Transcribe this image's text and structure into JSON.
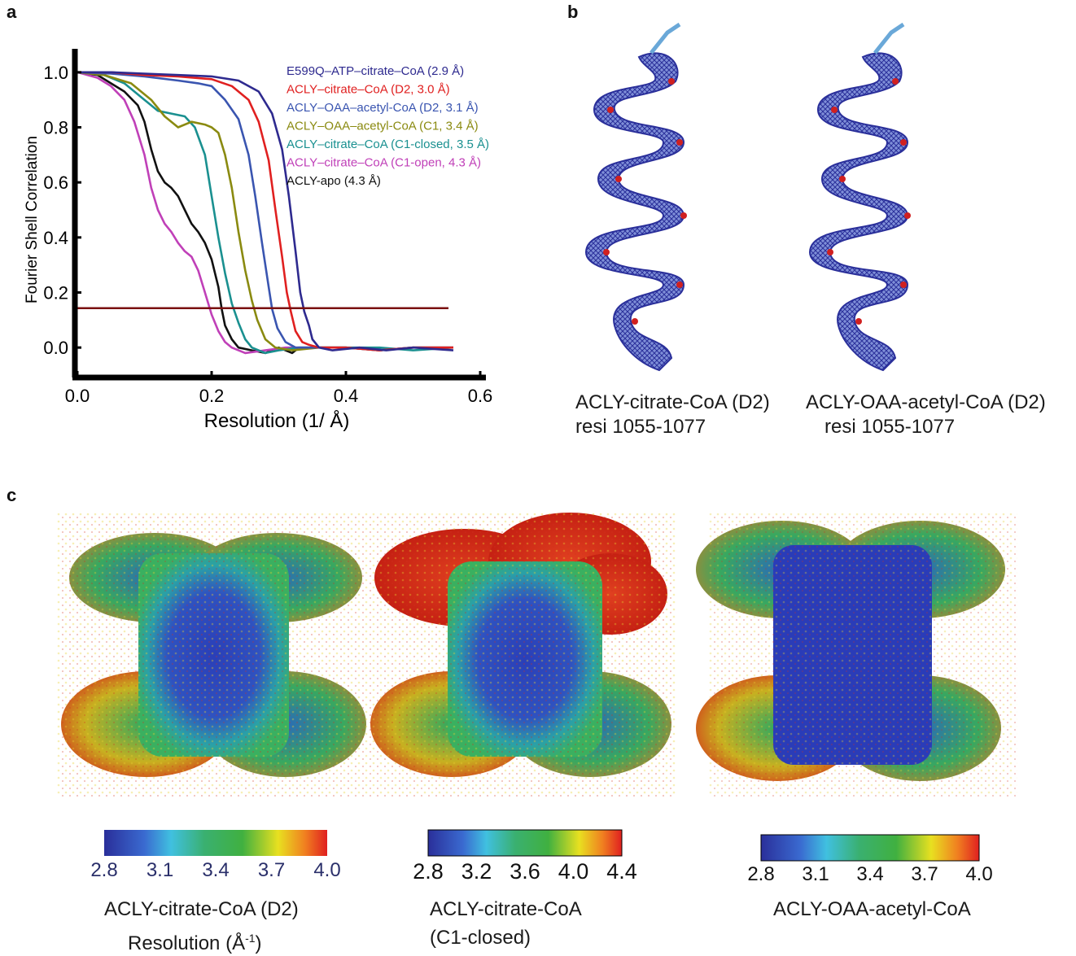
{
  "panels": {
    "a": "a",
    "b": "b",
    "c": "c"
  },
  "chart_data": {
    "type": "line",
    "title": "",
    "xlabel": "Resolution (1/ Å)",
    "ylabel": "Fourier Shell Correlation",
    "xlim": [
      0.0,
      0.6
    ],
    "ylim": [
      -0.1,
      1.1
    ],
    "xticks": [
      "0.0",
      "0.2",
      "0.4",
      "0.6"
    ],
    "yticks": [
      "0.0",
      "0.2",
      "0.4",
      "0.6",
      "0.8",
      "1.0"
    ],
    "threshold": 0.143,
    "threshold_color": "#7a1010",
    "grid": false,
    "legend_position": "top-right",
    "series": [
      {
        "name": "E599Q–ATP–citrate–CoA (2.9 Å)",
        "color": "#2e2a8f",
        "points": [
          [
            0,
            1
          ],
          [
            0.05,
            1
          ],
          [
            0.1,
            0.995
          ],
          [
            0.15,
            0.99
          ],
          [
            0.2,
            0.985
          ],
          [
            0.24,
            0.97
          ],
          [
            0.27,
            0.93
          ],
          [
            0.29,
            0.85
          ],
          [
            0.305,
            0.72
          ],
          [
            0.315,
            0.55
          ],
          [
            0.325,
            0.35
          ],
          [
            0.332,
            0.2
          ],
          [
            0.338,
            0.13
          ],
          [
            0.345,
            0.08
          ],
          [
            0.35,
            0.03
          ],
          [
            0.36,
            0.0
          ],
          [
            0.38,
            -0.01
          ],
          [
            0.42,
            0.0
          ],
          [
            0.46,
            -0.01
          ],
          [
            0.5,
            0.0
          ],
          [
            0.56,
            -0.01
          ]
        ]
      },
      {
        "name": "ACLY–citrate–CoA (D2, 3.0 Å)",
        "color": "#e02020",
        "points": [
          [
            0,
            1
          ],
          [
            0.05,
            1
          ],
          [
            0.1,
            0.99
          ],
          [
            0.15,
            0.985
          ],
          [
            0.2,
            0.975
          ],
          [
            0.23,
            0.95
          ],
          [
            0.255,
            0.9
          ],
          [
            0.27,
            0.82
          ],
          [
            0.285,
            0.68
          ],
          [
            0.295,
            0.5
          ],
          [
            0.305,
            0.33
          ],
          [
            0.312,
            0.2
          ],
          [
            0.318,
            0.13
          ],
          [
            0.325,
            0.06
          ],
          [
            0.335,
            0.02
          ],
          [
            0.345,
            0.01
          ],
          [
            0.36,
            0.0
          ],
          [
            0.4,
            0.0
          ],
          [
            0.45,
            -0.01
          ],
          [
            0.5,
            0.0
          ],
          [
            0.56,
            0.0
          ]
        ]
      },
      {
        "name": "ACLY–OAA–acetyl-CoA (D2, 3.1 Å)",
        "color": "#3a55b0",
        "points": [
          [
            0,
            1
          ],
          [
            0.05,
            0.995
          ],
          [
            0.1,
            0.985
          ],
          [
            0.15,
            0.97
          ],
          [
            0.18,
            0.96
          ],
          [
            0.2,
            0.95
          ],
          [
            0.22,
            0.9
          ],
          [
            0.24,
            0.83
          ],
          [
            0.255,
            0.7
          ],
          [
            0.265,
            0.55
          ],
          [
            0.275,
            0.38
          ],
          [
            0.285,
            0.22
          ],
          [
            0.29,
            0.14
          ],
          [
            0.298,
            0.07
          ],
          [
            0.31,
            0.02
          ],
          [
            0.325,
            0.0
          ],
          [
            0.35,
            0.0
          ],
          [
            0.4,
            0.0
          ],
          [
            0.45,
            -0.01
          ],
          [
            0.5,
            0.0
          ],
          [
            0.56,
            0.0
          ]
        ]
      },
      {
        "name": "ACLY–OAA–acetyl-CoA (C1, 3.4 Å)",
        "color": "#8a8a10",
        "points": [
          [
            0,
            1
          ],
          [
            0.04,
            0.99
          ],
          [
            0.08,
            0.96
          ],
          [
            0.11,
            0.9
          ],
          [
            0.13,
            0.84
          ],
          [
            0.15,
            0.8
          ],
          [
            0.17,
            0.82
          ],
          [
            0.19,
            0.81
          ],
          [
            0.2,
            0.8
          ],
          [
            0.21,
            0.78
          ],
          [
            0.22,
            0.7
          ],
          [
            0.23,
            0.58
          ],
          [
            0.24,
            0.42
          ],
          [
            0.25,
            0.28
          ],
          [
            0.26,
            0.17
          ],
          [
            0.268,
            0.1
          ],
          [
            0.28,
            0.03
          ],
          [
            0.295,
            0.0
          ],
          [
            0.32,
            -0.01
          ],
          [
            0.36,
            0.0
          ],
          [
            0.4,
            0.0
          ],
          [
            0.45,
            -0.01
          ],
          [
            0.5,
            0.0
          ],
          [
            0.56,
            0.0
          ]
        ]
      },
      {
        "name": "ACLY–citrate–CoA (C1-closed, 3.5 Å)",
        "color": "#1a9090",
        "points": [
          [
            0,
            1
          ],
          [
            0.04,
            0.99
          ],
          [
            0.07,
            0.96
          ],
          [
            0.1,
            0.9
          ],
          [
            0.12,
            0.86
          ],
          [
            0.14,
            0.85
          ],
          [
            0.16,
            0.84
          ],
          [
            0.175,
            0.8
          ],
          [
            0.19,
            0.7
          ],
          [
            0.2,
            0.55
          ],
          [
            0.21,
            0.4
          ],
          [
            0.22,
            0.27
          ],
          [
            0.23,
            0.16
          ],
          [
            0.24,
            0.09
          ],
          [
            0.25,
            0.03
          ],
          [
            0.26,
            0.0
          ],
          [
            0.28,
            -0.02
          ],
          [
            0.3,
            -0.01
          ],
          [
            0.33,
            0.0
          ],
          [
            0.38,
            0.0
          ],
          [
            0.45,
            0.0
          ],
          [
            0.5,
            -0.01
          ],
          [
            0.56,
            0.0
          ]
        ]
      },
      {
        "name": "ACLY–citrate–CoA (C1-open, 4.3 Å)",
        "color": "#c040b8",
        "points": [
          [
            0,
            1
          ],
          [
            0.03,
            0.98
          ],
          [
            0.05,
            0.95
          ],
          [
            0.07,
            0.9
          ],
          [
            0.085,
            0.82
          ],
          [
            0.1,
            0.7
          ],
          [
            0.11,
            0.58
          ],
          [
            0.12,
            0.5
          ],
          [
            0.13,
            0.45
          ],
          [
            0.14,
            0.42
          ],
          [
            0.15,
            0.38
          ],
          [
            0.16,
            0.35
          ],
          [
            0.17,
            0.33
          ],
          [
            0.18,
            0.28
          ],
          [
            0.19,
            0.2
          ],
          [
            0.2,
            0.12
          ],
          [
            0.21,
            0.06
          ],
          [
            0.22,
            0.02
          ],
          [
            0.23,
            0.0
          ],
          [
            0.25,
            -0.02
          ],
          [
            0.28,
            -0.01
          ],
          [
            0.31,
            0.0
          ],
          [
            0.35,
            0.0
          ],
          [
            0.4,
            0.0
          ],
          [
            0.45,
            -0.01
          ],
          [
            0.5,
            0.0
          ],
          [
            0.56,
            0.0
          ]
        ]
      },
      {
        "name": "ACLY-apo (4.3 Å)",
        "color": "#111111",
        "points": [
          [
            0,
            1
          ],
          [
            0.03,
            0.99
          ],
          [
            0.05,
            0.96
          ],
          [
            0.07,
            0.93
          ],
          [
            0.09,
            0.88
          ],
          [
            0.1,
            0.82
          ],
          [
            0.11,
            0.72
          ],
          [
            0.12,
            0.64
          ],
          [
            0.13,
            0.6
          ],
          [
            0.14,
            0.58
          ],
          [
            0.15,
            0.55
          ],
          [
            0.16,
            0.5
          ],
          [
            0.17,
            0.45
          ],
          [
            0.18,
            0.42
          ],
          [
            0.19,
            0.38
          ],
          [
            0.2,
            0.32
          ],
          [
            0.21,
            0.22
          ],
          [
            0.215,
            0.14
          ],
          [
            0.22,
            0.08
          ],
          [
            0.23,
            0.03
          ],
          [
            0.24,
            0.0
          ],
          [
            0.26,
            -0.01
          ],
          [
            0.28,
            -0.02
          ],
          [
            0.3,
            0.0
          ],
          [
            0.32,
            -0.02
          ],
          [
            0.33,
            0.0
          ]
        ]
      }
    ]
  },
  "panel_b": {
    "left_caption_line1": "ACLY-citrate-CoA (D2)",
    "left_caption_line2": "resi 1055-1077",
    "right_caption_line1": "ACLY-OAA-acetyl-CoA (D2)",
    "right_caption_line2": "resi 1055-1077"
  },
  "panel_c": {
    "maps": [
      {
        "caption_line1": "ACLY-citrate-CoA (D2)",
        "caption_line2": "Resolution (Å",
        "caption_sup": "-1",
        "caption_end": ")",
        "ticks": [
          "2.8",
          "3.1",
          "3.4",
          "3.7",
          "4.0"
        ]
      },
      {
        "caption_line1": "ACLY-citrate-CoA",
        "caption_line2": "(C1-closed)",
        "ticks": [
          "2.8",
          "3.2",
          "3.6",
          "4.0",
          "4.4"
        ]
      },
      {
        "caption_line1": "ACLY-OAA-acetyl-CoA",
        "ticks": [
          "2.8",
          "3.1",
          "3.4",
          "3.7",
          "4.0"
        ]
      }
    ]
  }
}
